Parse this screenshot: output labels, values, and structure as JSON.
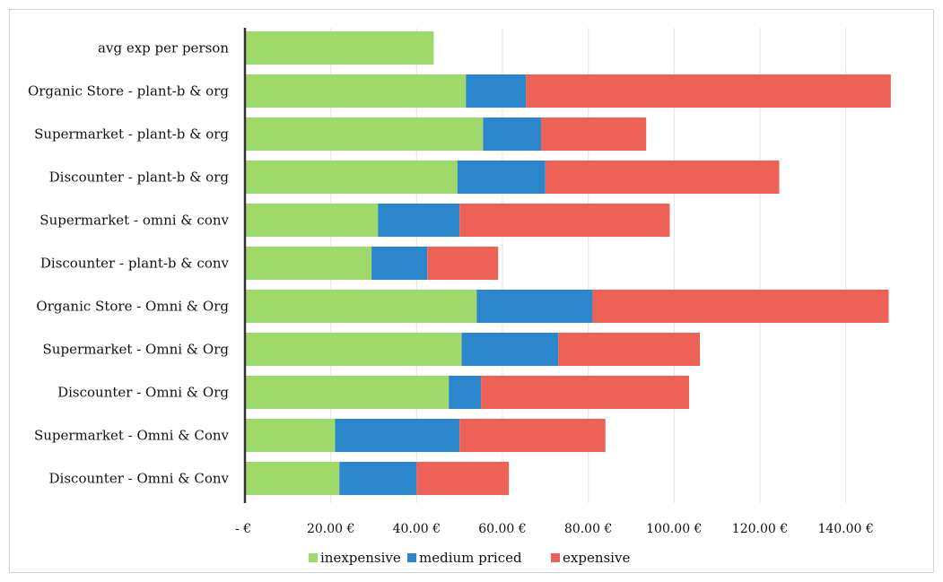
{
  "chart_data": {
    "type": "bar",
    "orientation": "horizontal",
    "stacked": true,
    "categories": [
      "avg exp per person",
      "Organic Store - plant-b & org",
      "Supermarket - plant-b & org",
      "Discounter - plant-b & org",
      "Supermarket - omni & conv",
      "Discounter - plant-b & conv",
      "Organic Store - Omni & Org",
      "Supermarket - Omni & Org",
      "Discounter - Omni & Org",
      "Supermarket - Omni & Conv",
      "Discounter - Omni & Conv"
    ],
    "series": [
      {
        "name": "inexpensive",
        "color": "#9fd86b",
        "values": [
          44,
          51.5,
          55.5,
          49.5,
          31,
          29.5,
          54,
          50.5,
          47.5,
          21,
          22
        ]
      },
      {
        "name": "medium priced",
        "color": "#2b86cc",
        "values": [
          0,
          14,
          13.5,
          20.5,
          19,
          13,
          27,
          22.5,
          7.5,
          29,
          18
        ]
      },
      {
        "name": "expensive",
        "color": "#ee6156",
        "values": [
          0,
          85,
          24.5,
          54.5,
          49,
          16.5,
          69,
          33,
          48.5,
          34,
          21.5
        ]
      }
    ],
    "xlim": [
      0,
      150
    ],
    "xticks": [
      0,
      20,
      40,
      60,
      80,
      100,
      120,
      140
    ],
    "xtick_labels": [
      "-   €",
      "20.00 €",
      "40.00 €",
      "60.00 €",
      "80.00 €",
      "100.00 €",
      "120.00 €",
      "140.00 €"
    ],
    "grid": "vertical",
    "legend": "bottom",
    "title": "",
    "xlabel": "",
    "ylabel": ""
  }
}
